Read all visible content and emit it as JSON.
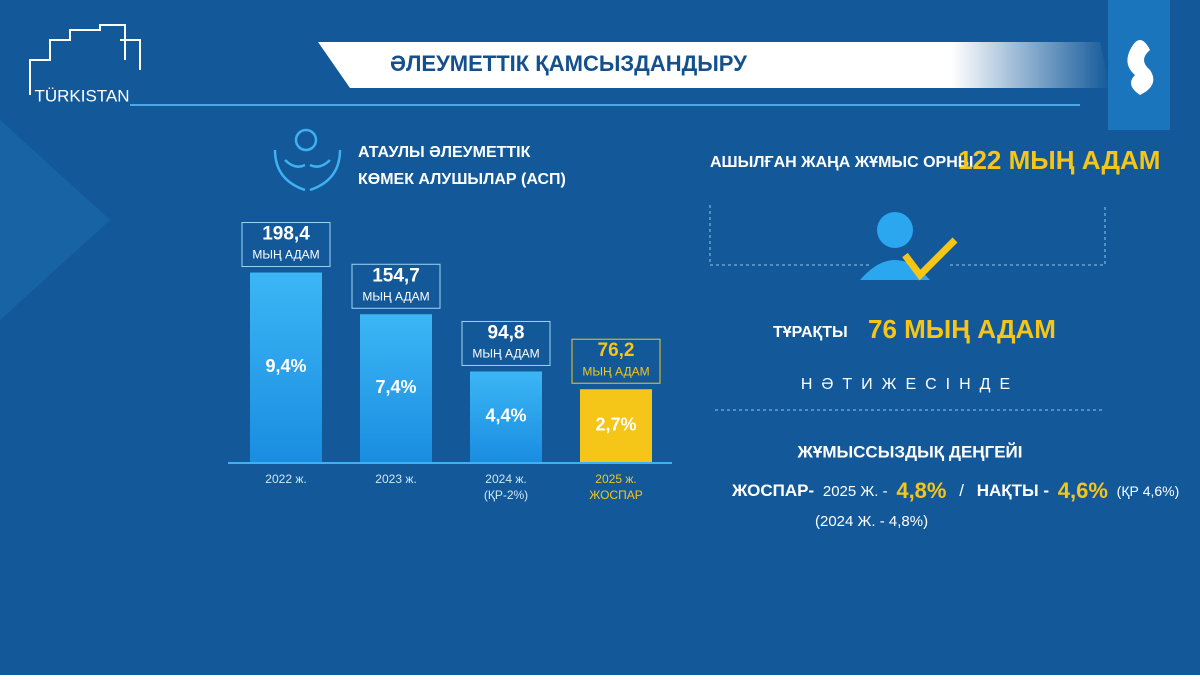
{
  "header": {
    "logo": "TÜRKISTAN",
    "title": "ӘЛЕУМЕТТІК ҚАМСЫЗДАНДЫРУ"
  },
  "chart_data": {
    "type": "bar",
    "title_lines": [
      "АТАУЛЫ ӘЛЕУМЕТТІК",
      "КӨМЕК АЛУШЫЛАР (АСП)"
    ],
    "categories": [
      "2022 ж.",
      "2023 ж.",
      "2024 ж.",
      "2025 ж."
    ],
    "category_notes": [
      null,
      null,
      "(ҚР-2%)",
      "ЖОСПАР"
    ],
    "values": [
      198.4,
      154.7,
      94.8,
      76.2
    ],
    "value_labels": [
      "198,4",
      "154,7",
      "94,8",
      "76,2"
    ],
    "unit_label": "МЫҢ АДАМ",
    "percent_values": [
      9.4,
      7.4,
      4.4,
      2.7
    ],
    "percent_labels": [
      "9,4%",
      "7,4%",
      "4,4%",
      "2,7%"
    ],
    "colors": [
      "#29a8f0",
      "#29a8f0",
      "#29a8f0",
      "#f5c518"
    ]
  },
  "jobs": {
    "label": "АШЫЛҒАН ЖАҢА ЖҰМЫС ОРНЫ",
    "value": "122 МЫҢ АДАМ",
    "stable_label": "ТҰРАҚТЫ",
    "stable_value": "76 МЫҢ АДАМ"
  },
  "result": {
    "heading": "НӘТИЖЕСІНДЕ",
    "subheading": "ЖҰМЫССЫЗДЫҚ ДЕҢГЕЙІ",
    "plan_label": "ЖОСПАР-",
    "plan_year": "2025 Ж. -",
    "plan_value": "4,8%",
    "separator": "/",
    "actual_label": "НАҚТЫ -",
    "actual_value": "4,6%",
    "actual_note": "(ҚР 4,6%)",
    "previous": "(2024 Ж. - 4,8%)"
  }
}
